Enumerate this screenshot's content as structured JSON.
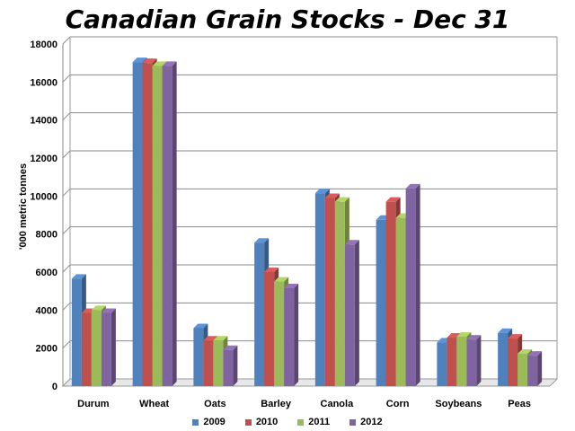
{
  "chart_data": {
    "type": "bar",
    "title": "Canadian Grain Stocks - Dec 31",
    "xlabel": "",
    "ylabel": "'000 metric tonnes",
    "ylim": [
      0,
      18000
    ],
    "yticks": [
      0,
      2000,
      4000,
      6000,
      8000,
      10000,
      12000,
      14000,
      16000,
      18000
    ],
    "grid": true,
    "legend_position": "bottom",
    "categories": [
      "Durum",
      "Wheat",
      "Oats",
      "Barley",
      "Canola",
      "Corn",
      "Soybeans",
      "Peas"
    ],
    "series": [
      {
        "name": "2009",
        "color": "#4f81bd",
        "values": [
          5650,
          17050,
          3050,
          7550,
          10150,
          8750,
          2300,
          2800
        ]
      },
      {
        "name": "2010",
        "color": "#c0504d",
        "values": [
          3850,
          17000,
          2400,
          6000,
          9900,
          9700,
          2550,
          2500
        ]
      },
      {
        "name": "2011",
        "color": "#9bbb59",
        "values": [
          4000,
          16850,
          2400,
          5500,
          9700,
          8850,
          2600,
          1700
        ]
      },
      {
        "name": "2012",
        "color": "#8064a2",
        "values": [
          3850,
          16850,
          1900,
          5150,
          7450,
          10400,
          2450,
          1600
        ]
      }
    ]
  }
}
